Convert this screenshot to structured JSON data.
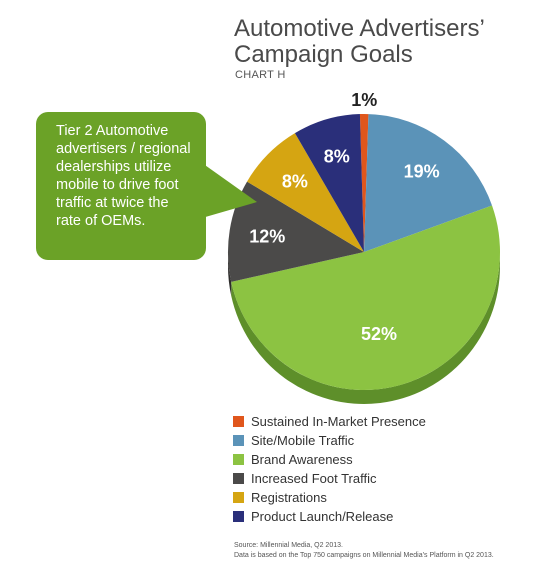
{
  "title_line1": "Automotive Advertisers’",
  "title_line2": "Campaign Goals",
  "subtitle": "CHART H",
  "callout": "Tier 2 Automotive advertisers / regional dealerships utilize mobile to drive foot traffic at twice the rate of OEMs.",
  "source_line1": "Source: Millennial Media, Q2 2013.",
  "source_line2": "Data is based on the Top 750 campaigns on Millennial Media’s Platform in Q2 2013.",
  "chart_data": {
    "type": "pie",
    "title": "Automotive Advertisers’ Campaign Goals",
    "subtitle": "CHART H",
    "legend_position": "bottom",
    "slices": [
      {
        "label": "Sustained In-Market Presence",
        "value": 1,
        "display": "1%",
        "color": "#e0561c",
        "side": "#a83e12",
        "label_color": "#222222"
      },
      {
        "label": "Site/Mobile Traffic",
        "value": 19,
        "display": "19%",
        "color": "#5b93b8",
        "side": "#3f6f8f",
        "label_color": "#ffffff"
      },
      {
        "label": "Brand Awareness",
        "value": 52,
        "display": "52%",
        "color": "#8cc342",
        "side": "#5e8f2a",
        "label_color": "#ffffff"
      },
      {
        "label": "Increased Foot Traffic",
        "value": 12,
        "display": "12%",
        "color": "#4b4a49",
        "side": "#2e2d2c",
        "label_color": "#ffffff"
      },
      {
        "label": "Registrations",
        "value": 8,
        "display": "8%",
        "color": "#d5a512",
        "side": "#9c780a",
        "label_color": "#ffffff"
      },
      {
        "label": "Product Launch/Release",
        "value": 8,
        "display": "8%",
        "color": "#2a2f7a",
        "side": "#1a1d52",
        "label_color": "#ffffff"
      }
    ]
  }
}
